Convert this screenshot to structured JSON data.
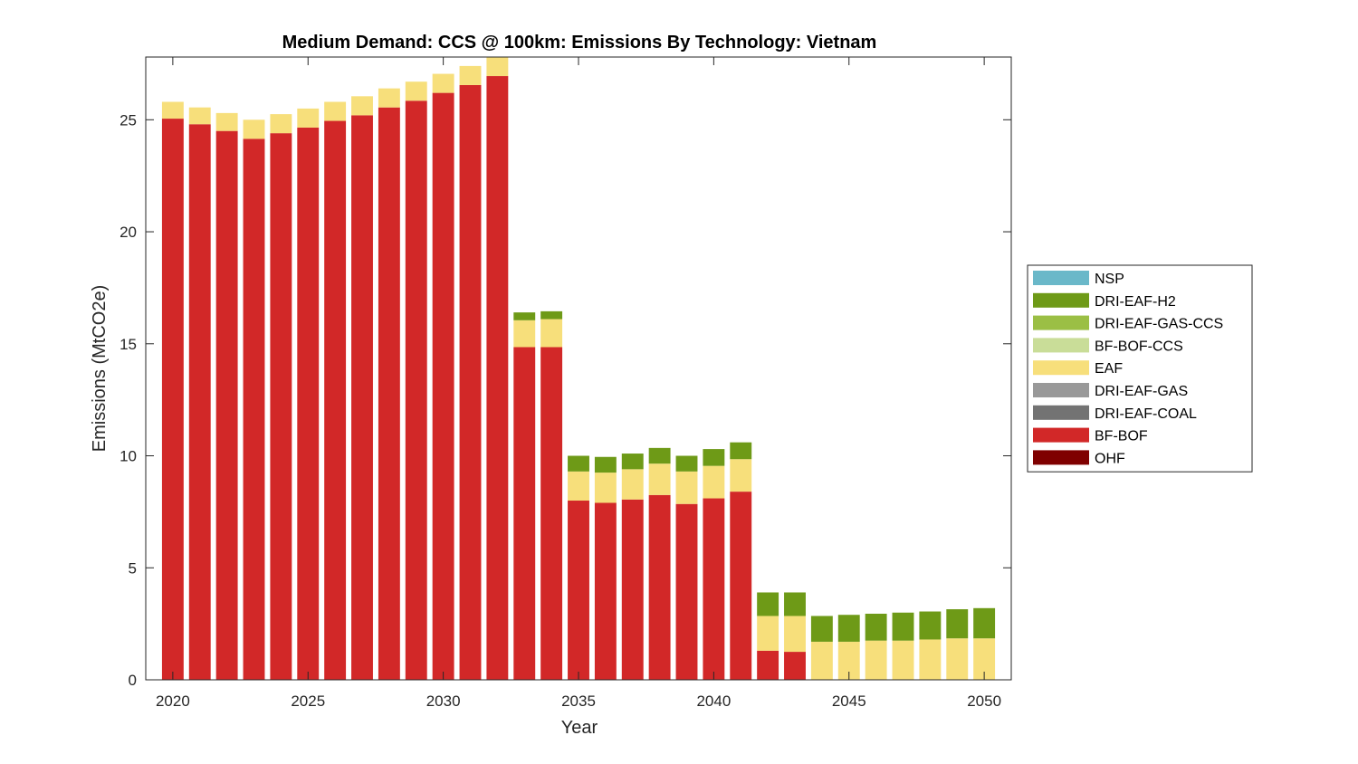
{
  "chart_data": {
    "type": "bar",
    "stacked": true,
    "title": "Medium Demand: CCS @ 100km: Emissions By Technology: Vietnam",
    "xlabel": "Year",
    "ylabel": "Emissions (MtCO2e)",
    "xlim": [
      2019,
      2051
    ],
    "ylim": [
      0,
      27.8
    ],
    "xticks": [
      "2020",
      "2025",
      "2030",
      "2035",
      "2040",
      "2045",
      "2050"
    ],
    "yticks": [
      "0",
      "5",
      "10",
      "15",
      "20",
      "25"
    ],
    "legend_position": "right",
    "categories": [
      2020,
      2021,
      2022,
      2023,
      2024,
      2025,
      2026,
      2027,
      2028,
      2029,
      2030,
      2031,
      2032,
      2033,
      2034,
      2035,
      2036,
      2037,
      2038,
      2039,
      2040,
      2041,
      2042,
      2043,
      2044,
      2045,
      2046,
      2047,
      2048,
      2049,
      2050
    ],
    "series": [
      {
        "name": "OHF",
        "color": "#7f0000",
        "values": [
          0,
          0,
          0,
          0,
          0,
          0,
          0,
          0,
          0,
          0,
          0,
          0,
          0,
          0,
          0,
          0,
          0,
          0,
          0,
          0,
          0,
          0,
          0,
          0,
          0,
          0,
          0,
          0,
          0,
          0,
          0
        ]
      },
      {
        "name": "BF-BOF",
        "color": "#d22828",
        "values": [
          25.05,
          24.8,
          24.5,
          24.15,
          24.4,
          24.65,
          24.95,
          25.2,
          25.55,
          25.85,
          26.2,
          26.55,
          26.95,
          14.85,
          14.85,
          8.0,
          7.9,
          8.05,
          8.25,
          7.85,
          8.1,
          8.4,
          1.3,
          1.25,
          0,
          0,
          0,
          0,
          0,
          0,
          0
        ]
      },
      {
        "name": "DRI-EAF-COAL",
        "color": "#737373",
        "values": [
          0,
          0,
          0,
          0,
          0,
          0,
          0,
          0,
          0,
          0,
          0,
          0,
          0,
          0,
          0,
          0,
          0,
          0,
          0,
          0,
          0,
          0,
          0,
          0,
          0,
          0,
          0,
          0,
          0,
          0,
          0
        ]
      },
      {
        "name": "DRI-EAF-GAS",
        "color": "#999999",
        "values": [
          0,
          0,
          0,
          0,
          0,
          0,
          0,
          0,
          0,
          0,
          0,
          0,
          0,
          0,
          0,
          0,
          0,
          0,
          0,
          0,
          0,
          0,
          0,
          0,
          0,
          0,
          0,
          0,
          0,
          0,
          0
        ]
      },
      {
        "name": "EAF",
        "color": "#f7df7b",
        "values": [
          0.75,
          0.75,
          0.8,
          0.85,
          0.85,
          0.85,
          0.85,
          0.85,
          0.85,
          0.85,
          0.85,
          0.85,
          0.85,
          1.2,
          1.25,
          1.3,
          1.35,
          1.35,
          1.4,
          1.45,
          1.45,
          1.45,
          1.55,
          1.6,
          1.7,
          1.7,
          1.75,
          1.75,
          1.8,
          1.85,
          1.85
        ]
      },
      {
        "name": "BF-BOF-CCS",
        "color": "#c9dd98",
        "values": [
          0,
          0,
          0,
          0,
          0,
          0,
          0,
          0,
          0,
          0,
          0,
          0,
          0,
          0,
          0,
          0,
          0,
          0,
          0,
          0,
          0,
          0,
          0,
          0,
          0,
          0,
          0,
          0,
          0,
          0,
          0
        ]
      },
      {
        "name": "DRI-EAF-GAS-CCS",
        "color": "#9bbf45",
        "values": [
          0,
          0,
          0,
          0,
          0,
          0,
          0,
          0,
          0,
          0,
          0,
          0,
          0,
          0,
          0,
          0,
          0,
          0,
          0,
          0,
          0,
          0,
          0,
          0,
          0,
          0,
          0,
          0,
          0,
          0,
          0
        ]
      },
      {
        "name": "DRI-EAF-H2",
        "color": "#6e9a17",
        "values": [
          0,
          0,
          0,
          0,
          0,
          0,
          0,
          0,
          0,
          0,
          0,
          0,
          0,
          0.35,
          0.35,
          0.7,
          0.7,
          0.7,
          0.7,
          0.7,
          0.75,
          0.75,
          1.05,
          1.05,
          1.15,
          1.2,
          1.2,
          1.25,
          1.25,
          1.3,
          1.35
        ]
      },
      {
        "name": "NSP",
        "color": "#6ab8c9",
        "values": [
          0,
          0,
          0,
          0,
          0,
          0,
          0,
          0,
          0,
          0,
          0,
          0,
          0,
          0,
          0,
          0,
          0,
          0,
          0,
          0,
          0,
          0,
          0,
          0,
          0,
          0,
          0,
          0,
          0,
          0,
          0
        ]
      }
    ],
    "legend_order": [
      "NSP",
      "DRI-EAF-H2",
      "DRI-EAF-GAS-CCS",
      "BF-BOF-CCS",
      "EAF",
      "DRI-EAF-GAS",
      "DRI-EAF-COAL",
      "BF-BOF",
      "OHF"
    ]
  }
}
